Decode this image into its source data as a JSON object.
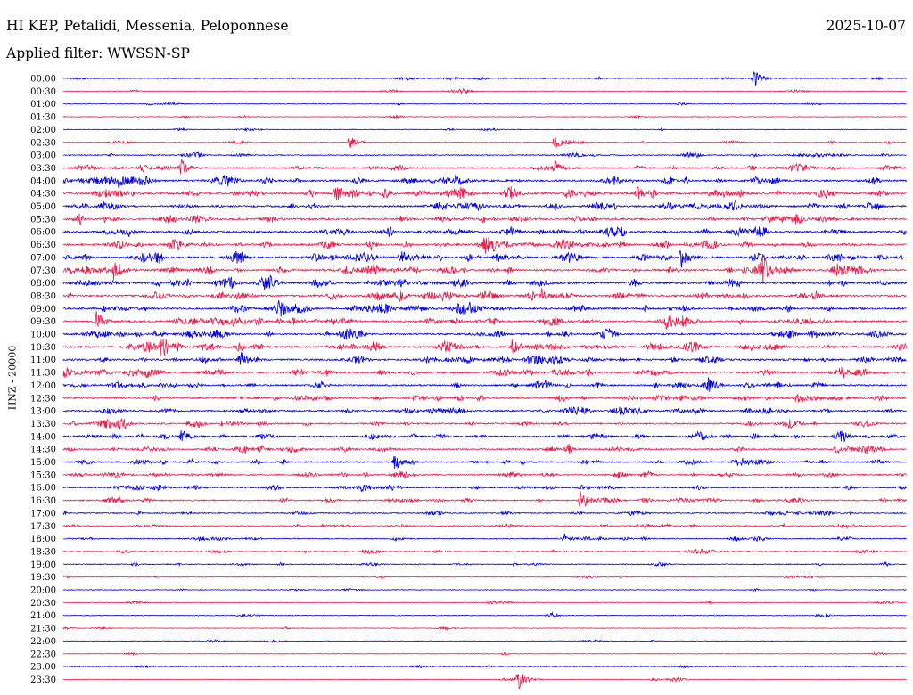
{
  "header": {
    "station": "HI KEP, Petalidi, Messenia, Peloponnese",
    "date": "2025-10-07",
    "filter": "Applied filter: WWSSN-SP"
  },
  "colors": {
    "even_hour": "#0000ee",
    "half_hour": "#ee1b4a"
  },
  "chart_data": {
    "type": "line",
    "title": "HI KEP, Petalidi, Messenia, Peloponnese",
    "ylabel": "HNZ - 20000",
    "xlabel": "",
    "row_labels": [
      "00:00",
      "00:30",
      "01:00",
      "01:30",
      "02:00",
      "02:30",
      "03:00",
      "03:30",
      "04:00",
      "04:30",
      "05:00",
      "05:30",
      "06:00",
      "06:30",
      "07:00",
      "07:30",
      "08:00",
      "08:30",
      "09:00",
      "09:30",
      "10:00",
      "10:30",
      "11:00",
      "11:30",
      "12:00",
      "12:30",
      "13:00",
      "13:30",
      "14:00",
      "14:30",
      "15:00",
      "15:30",
      "16:00",
      "16:30",
      "17:00",
      "17:30",
      "18:00",
      "18:30",
      "19:00",
      "19:30",
      "20:00",
      "20:30",
      "21:00",
      "21:30",
      "22:00",
      "22:30",
      "23:00",
      "23:30"
    ],
    "series_colors": [
      "#0000ee",
      "#ee1b4a"
    ],
    "activity_level": [
      0.15,
      0.12,
      0.1,
      0.08,
      0.1,
      0.15,
      0.3,
      0.5,
      0.75,
      0.8,
      0.7,
      0.7,
      0.7,
      0.75,
      0.8,
      0.85,
      0.75,
      0.75,
      0.7,
      0.7,
      0.7,
      0.75,
      0.7,
      0.7,
      0.6,
      0.6,
      0.55,
      0.55,
      0.55,
      0.55,
      0.5,
      0.5,
      0.45,
      0.45,
      0.35,
      0.3,
      0.3,
      0.25,
      0.25,
      0.15,
      0.12,
      0.12,
      0.12,
      0.08,
      0.08,
      0.06,
      0.08,
      0.1
    ],
    "events": [
      {
        "row": 0,
        "minute": 24.6,
        "amplitude": 10
      },
      {
        "row": 5,
        "minute": 10.2,
        "amplitude": 8
      },
      {
        "row": 5,
        "minute": 17.5,
        "amplitude": 9
      },
      {
        "row": 7,
        "minute": 4.2,
        "amplitude": 8
      },
      {
        "row": 7,
        "minute": 17.5,
        "amplitude": 8
      },
      {
        "row": 8,
        "minute": 2.0,
        "amplitude": 7
      },
      {
        "row": 8,
        "minute": 14.0,
        "amplitude": 8
      },
      {
        "row": 9,
        "minute": 9.7,
        "amplitude": 10
      },
      {
        "row": 9,
        "minute": 20.4,
        "amplitude": 8
      },
      {
        "row": 13,
        "minute": 15.0,
        "amplitude": 9
      },
      {
        "row": 14,
        "minute": 12.0,
        "amplitude": 10
      },
      {
        "row": 14,
        "minute": 22.0,
        "amplitude": 12
      },
      {
        "row": 15,
        "minute": 1.8,
        "amplitude": 10
      },
      {
        "row": 15,
        "minute": 24.9,
        "amplitude": 12
      },
      {
        "row": 17,
        "minute": 17.0,
        "amplitude": 9
      },
      {
        "row": 18,
        "minute": 7.7,
        "amplitude": 10
      },
      {
        "row": 19,
        "minute": 1.2,
        "amplitude": 12
      },
      {
        "row": 19,
        "minute": 21.5,
        "amplitude": 9
      },
      {
        "row": 21,
        "minute": 3.5,
        "amplitude": 12
      },
      {
        "row": 21,
        "minute": 16.0,
        "amplitude": 10
      },
      {
        "row": 22,
        "minute": 6.3,
        "amplitude": 10
      },
      {
        "row": 24,
        "minute": 22.9,
        "amplitude": 8
      },
      {
        "row": 28,
        "minute": 4.2,
        "amplitude": 8
      },
      {
        "row": 28,
        "minute": 22.6,
        "amplitude": 8
      },
      {
        "row": 30,
        "minute": 11.8,
        "amplitude": 9
      },
      {
        "row": 33,
        "minute": 18.4,
        "amplitude": 12
      },
      {
        "row": 36,
        "minute": 17.8,
        "amplitude": 6
      },
      {
        "row": 47,
        "minute": 16.2,
        "amplitude": 12
      }
    ]
  }
}
